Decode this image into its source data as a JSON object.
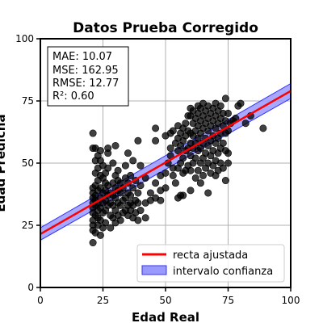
{
  "chart_data": {
    "type": "scatter",
    "title": "Datos Prueba Corregido",
    "xlabel": "Edad Real",
    "ylabel": "Edad Predicha",
    "xlim": [
      0,
      100
    ],
    "ylim": [
      0,
      100
    ],
    "x_ticks": [
      "0",
      "25",
      "50",
      "75",
      "100"
    ],
    "y_ticks": [
      "0",
      "25",
      "50",
      "75",
      "100"
    ],
    "grid": true,
    "stats": [
      "MAE: 10.07",
      "MSE: 162.95",
      "RMSE: 12.77",
      "R²: 0.60"
    ],
    "legend": {
      "position": "lower-right",
      "entries": [
        {
          "label": "recta ajustada",
          "color": "#ff0000"
        },
        {
          "label": "intervalo confianza",
          "color": "#9999ff"
        }
      ]
    },
    "fit_line": {
      "x": [
        0,
        100
      ],
      "y": [
        21.5,
        79
      ]
    },
    "confidence_band": {
      "x": [
        0,
        100
      ],
      "lower": [
        19,
        76
      ],
      "upper": [
        24,
        82
      ]
    },
    "points": [
      [
        21,
        23
      ],
      [
        21,
        25
      ],
      [
        21,
        27
      ],
      [
        21,
        30
      ],
      [
        21,
        32
      ],
      [
        21,
        34
      ],
      [
        21,
        36
      ],
      [
        21,
        38
      ],
      [
        21,
        40
      ],
      [
        21,
        62
      ],
      [
        21,
        56
      ],
      [
        21,
        18
      ],
      [
        22,
        22
      ],
      [
        22,
        29
      ],
      [
        22,
        33
      ],
      [
        22,
        35
      ],
      [
        22,
        37
      ],
      [
        22,
        41
      ],
      [
        22,
        46
      ],
      [
        22,
        51
      ],
      [
        22,
        56
      ],
      [
        23,
        25
      ],
      [
        23,
        28
      ],
      [
        23,
        31
      ],
      [
        23,
        34
      ],
      [
        23,
        39
      ],
      [
        23,
        43
      ],
      [
        23,
        48
      ],
      [
        23,
        53
      ],
      [
        24,
        21
      ],
      [
        24,
        27
      ],
      [
        24,
        32
      ],
      [
        24,
        36
      ],
      [
        24,
        40
      ],
      [
        24,
        45
      ],
      [
        24,
        51
      ],
      [
        24,
        55
      ],
      [
        25,
        24
      ],
      [
        25,
        30
      ],
      [
        25,
        34
      ],
      [
        25,
        38
      ],
      [
        25,
        44
      ],
      [
        25,
        49
      ],
      [
        26,
        26
      ],
      [
        26,
        31
      ],
      [
        26,
        35
      ],
      [
        26,
        39
      ],
      [
        26,
        42
      ],
      [
        26,
        46
      ],
      [
        27,
        33
      ],
      [
        27,
        37
      ],
      [
        27,
        41
      ],
      [
        27,
        48
      ],
      [
        27,
        54
      ],
      [
        27,
        56
      ],
      [
        28,
        24
      ],
      [
        28,
        29
      ],
      [
        28,
        34
      ],
      [
        28,
        38
      ],
      [
        29,
        28
      ],
      [
        29,
        33
      ],
      [
        29,
        37
      ],
      [
        29,
        42
      ],
      [
        29,
        50
      ],
      [
        30,
        26
      ],
      [
        30,
        31
      ],
      [
        30,
        36
      ],
      [
        30,
        40
      ],
      [
        30,
        45
      ],
      [
        30,
        57
      ],
      [
        31,
        29
      ],
      [
        31,
        34
      ],
      [
        31,
        39
      ],
      [
        31,
        43
      ],
      [
        31,
        47
      ],
      [
        32,
        27
      ],
      [
        32,
        33
      ],
      [
        32,
        38
      ],
      [
        32,
        42
      ],
      [
        33,
        30
      ],
      [
        33,
        35
      ],
      [
        33,
        40
      ],
      [
        34,
        31
      ],
      [
        34,
        36
      ],
      [
        34,
        44
      ],
      [
        34,
        49
      ],
      [
        35,
        29
      ],
      [
        35,
        33
      ],
      [
        35,
        38
      ],
      [
        35,
        42
      ],
      [
        35,
        54
      ],
      [
        36,
        31
      ],
      [
        36,
        34
      ],
      [
        36,
        37
      ],
      [
        36,
        45
      ],
      [
        37,
        28
      ],
      [
        37,
        33
      ],
      [
        37,
        40
      ],
      [
        37,
        51
      ],
      [
        38,
        30
      ],
      [
        38,
        35
      ],
      [
        38,
        43
      ],
      [
        39,
        27
      ],
      [
        39,
        34
      ],
      [
        39,
        38
      ],
      [
        39,
        59
      ],
      [
        40,
        31
      ],
      [
        40,
        41
      ],
      [
        40,
        49
      ],
      [
        42,
        34
      ],
      [
        42,
        44
      ],
      [
        42,
        28
      ],
      [
        44,
        35
      ],
      [
        44,
        38
      ],
      [
        46,
        36
      ],
      [
        46,
        42
      ],
      [
        46,
        59
      ],
      [
        46,
        64
      ],
      [
        48,
        35
      ],
      [
        48,
        45
      ],
      [
        48,
        39
      ],
      [
        50,
        40
      ],
      [
        50,
        46
      ],
      [
        50,
        61
      ],
      [
        51,
        50
      ],
      [
        52,
        53
      ],
      [
        52,
        56
      ],
      [
        52,
        62
      ],
      [
        53,
        45
      ],
      [
        53,
        48
      ],
      [
        53,
        63
      ],
      [
        54,
        42
      ],
      [
        54,
        58
      ],
      [
        55,
        36
      ],
      [
        55,
        48
      ],
      [
        55,
        55
      ],
      [
        55,
        60
      ],
      [
        55,
        65
      ],
      [
        56,
        37
      ],
      [
        56,
        50
      ],
      [
        56,
        57
      ],
      [
        56,
        62
      ],
      [
        57,
        46
      ],
      [
        57,
        52
      ],
      [
        57,
        59
      ],
      [
        57,
        64
      ],
      [
        57,
        37
      ],
      [
        58,
        47
      ],
      [
        58,
        55
      ],
      [
        58,
        61
      ],
      [
        58,
        66
      ],
      [
        59,
        49
      ],
      [
        59,
        56
      ],
      [
        59,
        63
      ],
      [
        59,
        69
      ],
      [
        60,
        47
      ],
      [
        60,
        53
      ],
      [
        60,
        58
      ],
      [
        60,
        62
      ],
      [
        60,
        69
      ],
      [
        60,
        72
      ],
      [
        60,
        39
      ],
      [
        61,
        50
      ],
      [
        61,
        56
      ],
      [
        61,
        61
      ],
      [
        61,
        66
      ],
      [
        61,
        71
      ],
      [
        62,
        44
      ],
      [
        62,
        52
      ],
      [
        62,
        58
      ],
      [
        62,
        63
      ],
      [
        62,
        68
      ],
      [
        63,
        47
      ],
      [
        63,
        55
      ],
      [
        63,
        60
      ],
      [
        63,
        65
      ],
      [
        63,
        70
      ],
      [
        63,
        73
      ],
      [
        64,
        42
      ],
      [
        64,
        50
      ],
      [
        64,
        56
      ],
      [
        64,
        62
      ],
      [
        64,
        67
      ],
      [
        64,
        72
      ],
      [
        65,
        45
      ],
      [
        65,
        52
      ],
      [
        65,
        58
      ],
      [
        65,
        64
      ],
      [
        65,
        69
      ],
      [
        65,
        74
      ],
      [
        66,
        48
      ],
      [
        66,
        54
      ],
      [
        66,
        60
      ],
      [
        66,
        66
      ],
      [
        66,
        71
      ],
      [
        67,
        38
      ],
      [
        67,
        50
      ],
      [
        67,
        57
      ],
      [
        67,
        63
      ],
      [
        67,
        68
      ],
      [
        67,
        73
      ],
      [
        68,
        46
      ],
      [
        68,
        53
      ],
      [
        68,
        59
      ],
      [
        68,
        65
      ],
      [
        68,
        70
      ],
      [
        69,
        49
      ],
      [
        69,
        55
      ],
      [
        69,
        61
      ],
      [
        69,
        67
      ],
      [
        69,
        72
      ],
      [
        70,
        45
      ],
      [
        70,
        51
      ],
      [
        70,
        58
      ],
      [
        70,
        64
      ],
      [
        70,
        69
      ],
      [
        70,
        74
      ],
      [
        71,
        47
      ],
      [
        71,
        54
      ],
      [
        71,
        60
      ],
      [
        71,
        66
      ],
      [
        71,
        71
      ],
      [
        72,
        50
      ],
      [
        72,
        56
      ],
      [
        72,
        62
      ],
      [
        72,
        68
      ],
      [
        72,
        73
      ],
      [
        73,
        48
      ],
      [
        73,
        58
      ],
      [
        73,
        65
      ],
      [
        73,
        70
      ],
      [
        74,
        43
      ],
      [
        74,
        55
      ],
      [
        74,
        62
      ],
      [
        74,
        67
      ],
      [
        74,
        76
      ],
      [
        75,
        50
      ],
      [
        75,
        54
      ],
      [
        75,
        63
      ],
      [
        75,
        70
      ],
      [
        76,
        66
      ],
      [
        77,
        67
      ],
      [
        78,
        68
      ],
      [
        79,
        73
      ],
      [
        80,
        74
      ],
      [
        82,
        66
      ],
      [
        84,
        69
      ],
      [
        89,
        64
      ]
    ]
  }
}
